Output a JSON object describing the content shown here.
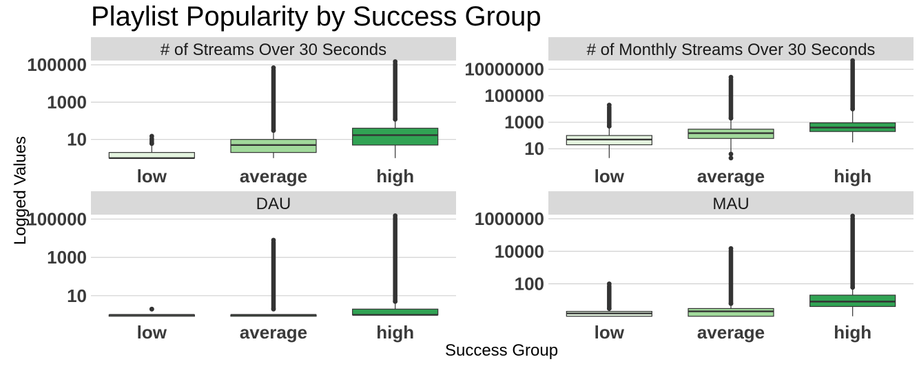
{
  "title": "Playlist Popularity by Success Group",
  "ylabel": "Logged Values",
  "xlabel": "Success Group",
  "colors": {
    "low": "#e5f5e0",
    "average": "#a1d99b",
    "high": "#31a354",
    "strip": "#d9d9d9",
    "grid": "#d0d0d0",
    "outlier": "#333333"
  },
  "chart_data": [
    {
      "type": "box",
      "title": "# of Streams Over 30 Seconds",
      "scale": "log10",
      "ylim": [
        0.7,
        170000
      ],
      "yticks": [
        10,
        1000,
        100000
      ],
      "ytick_labels": [
        "10",
        "1000",
        "100000"
      ],
      "categories": [
        "low",
        "average",
        "high"
      ],
      "boxes": [
        {
          "group": "low",
          "q1": 1,
          "median": 1,
          "q3": 2,
          "whisker_low": 1,
          "whisker_high": 6,
          "outlier_min": 6,
          "outlier_max": 15
        },
        {
          "group": "average",
          "q1": 2,
          "median": 5,
          "q3": 10,
          "whisker_low": 1,
          "whisker_high": 30,
          "outlier_min": 30,
          "outlier_max": 70000
        },
        {
          "group": "high",
          "q1": 5,
          "median": 17,
          "q3": 40,
          "whisker_low": 1,
          "whisker_high": 120,
          "outlier_min": 120,
          "outlier_max": 150000
        }
      ]
    },
    {
      "type": "box",
      "title": "# of Monthly Streams Over 30 Seconds",
      "scale": "log10",
      "ylim": [
        1.2,
        45000000
      ],
      "yticks": [
        10,
        1000,
        100000,
        10000000
      ],
      "ytick_labels": [
        "10",
        "1000",
        "100000",
        "10000000"
      ],
      "categories": [
        "low",
        "average",
        "high"
      ],
      "boxes": [
        {
          "group": "low",
          "q1": 20,
          "median": 50,
          "q3": 100,
          "whisker_low": 2,
          "whisker_high": 500,
          "outlier_min": 500,
          "outlier_max": 20000
        },
        {
          "group": "average",
          "q1": 60,
          "median": 150,
          "q3": 300,
          "whisker_low": 5,
          "whisker_high": 2000,
          "outlier_min": 2000,
          "outlier_max": 2500000
        },
        {
          "group": "high",
          "q1": 200,
          "median": 400,
          "q3": 900,
          "whisker_low": 30,
          "whisker_high": 10000,
          "outlier_min": 10000,
          "outlier_max": 45000000
        },
        {
          "group": "average-low-outliers",
          "q1": null,
          "median": null,
          "q3": null,
          "whisker_low": null,
          "whisker_high": null,
          "outlier_min": 2,
          "outlier_max": 4
        }
      ]
    },
    {
      "type": "box",
      "title": "DAU",
      "scale": "log10",
      "ylim": [
        0.7,
        170000
      ],
      "yticks": [
        10,
        1000,
        100000
      ],
      "ytick_labels": [
        "10",
        "1000",
        "100000"
      ],
      "categories": [
        "low",
        "average",
        "high"
      ],
      "boxes": [
        {
          "group": "low",
          "q1": 1,
          "median": 1,
          "q3": 1,
          "whisker_low": 1,
          "whisker_high": 1,
          "outlier_min": 2,
          "outlier_max": 2
        },
        {
          "group": "average",
          "q1": 1,
          "median": 1,
          "q3": 1,
          "whisker_low": 1,
          "whisker_high": 1,
          "outlier_min": 2,
          "outlier_max": 8000
        },
        {
          "group": "high",
          "q1": 1,
          "median": 1,
          "q3": 2,
          "whisker_low": 1,
          "whisker_high": 5,
          "outlier_min": 5,
          "outlier_max": 150000
        }
      ]
    },
    {
      "type": "box",
      "title": "MAU",
      "scale": "log10",
      "ylim": [
        0.8,
        1800000
      ],
      "yticks": [
        100,
        10000,
        1000000
      ],
      "ytick_labels": [
        "100",
        "10000",
        "1000000"
      ],
      "categories": [
        "low",
        "average",
        "high"
      ],
      "boxes": [
        {
          "group": "low",
          "q1": 1,
          "median": 1.5,
          "q3": 2,
          "whisker_low": 1,
          "whisker_high": 3,
          "outlier_min": 3,
          "outlier_max": 100
        },
        {
          "group": "average",
          "q1": 1,
          "median": 2,
          "q3": 3,
          "whisker_low": 1,
          "whisker_high": 6,
          "outlier_min": 6,
          "outlier_max": 15000
        },
        {
          "group": "high",
          "q1": 4,
          "median": 8,
          "q3": 20,
          "whisker_low": 1,
          "whisker_high": 60,
          "outlier_min": 60,
          "outlier_max": 1500000
        }
      ]
    }
  ]
}
